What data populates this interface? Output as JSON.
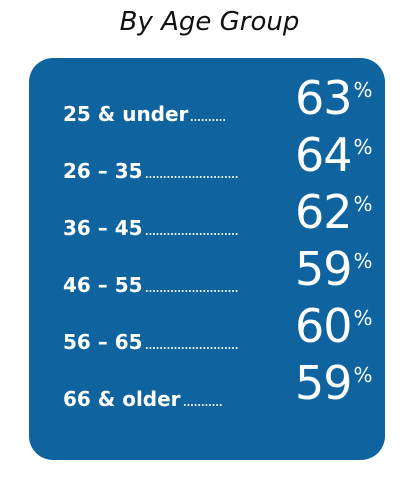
{
  "title": "By Age Group",
  "colors": {
    "panel": "#0f64a0",
    "text": "#ffffff",
    "title": "#111111"
  },
  "chart_data": {
    "type": "table",
    "title": "By Age Group",
    "unit": "%",
    "categories": [
      "25 & under",
      "26 – 35",
      "36 – 45",
      "46 – 55",
      "56 – 65",
      "66 & older"
    ],
    "values": [
      63,
      64,
      62,
      59,
      60,
      59
    ]
  },
  "rows": [
    {
      "label": "25 & under",
      "value": "63",
      "unit": "%"
    },
    {
      "label": "26 – 35",
      "value": "64",
      "unit": "%"
    },
    {
      "label": "36 – 45",
      "value": "62",
      "unit": "%"
    },
    {
      "label": "46 – 55",
      "value": "59",
      "unit": "%"
    },
    {
      "label": "56 – 65",
      "value": "60",
      "unit": "%"
    },
    {
      "label": "66 & older",
      "value": "59",
      "unit": "%"
    }
  ]
}
